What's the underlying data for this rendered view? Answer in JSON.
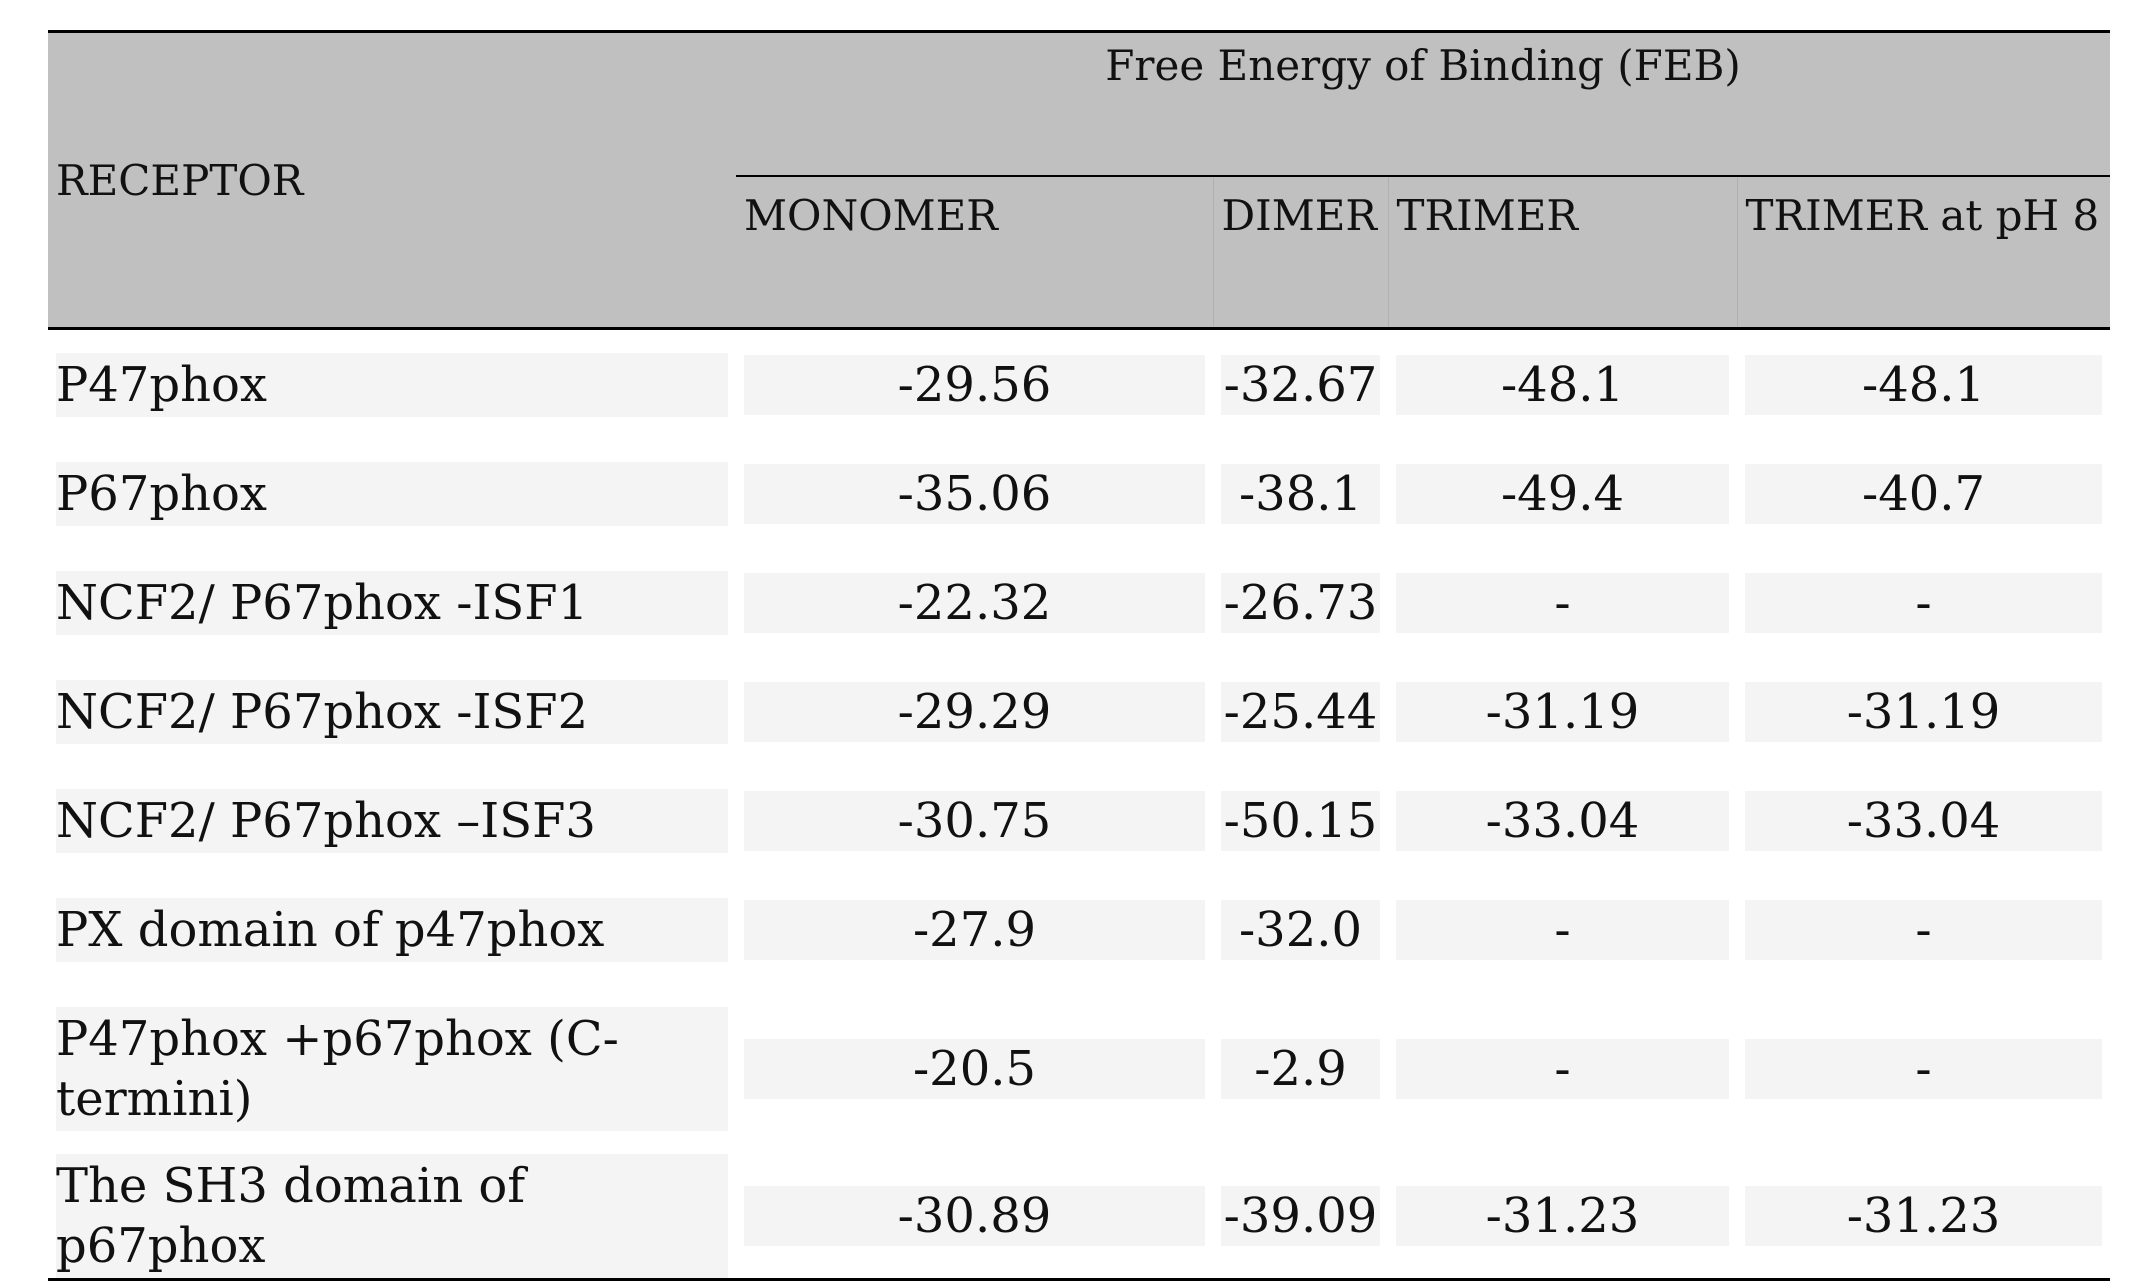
{
  "table": {
    "receptor_header": "RECEPTOR",
    "group_header": "Free Energy of Binding (FEB)",
    "columns": [
      "MONOMER",
      "DIMER",
      "TRIMER",
      "TRIMER at pH 8"
    ],
    "rows": [
      {
        "receptor": "P47phox",
        "values": [
          "-29.56",
          "-32.67",
          "-48.1",
          "-48.1"
        ]
      },
      {
        "receptor": "P67phox",
        "values": [
          "-35.06",
          "-38.1",
          "-49.4",
          "-40.7"
        ]
      },
      {
        "receptor": "NCF2/ P67phox -ISF1",
        "values": [
          "-22.32",
          "-26.73",
          "-",
          "-"
        ]
      },
      {
        "receptor": "NCF2/ P67phox -ISF2",
        "values": [
          "-29.29",
          "-25.44",
          "-31.19",
          "-31.19"
        ]
      },
      {
        "receptor": "NCF2/ P67phox –ISF3",
        "values": [
          "-30.75",
          "-50.15",
          "-33.04",
          "-33.04"
        ]
      },
      {
        "receptor": "PX domain of p47phox",
        "values": [
          "-27.9",
          "-32.0",
          "-",
          "-"
        ]
      },
      {
        "receptor": "P47phox +p67phox (C-termini)",
        "values": [
          "-20.5",
          "-2.9",
          "-",
          "-"
        ]
      },
      {
        "receptor": "The SH3 domain of p67phox",
        "values": [
          "-30.89",
          "-39.09",
          "-31.23",
          "-31.23"
        ]
      }
    ]
  }
}
